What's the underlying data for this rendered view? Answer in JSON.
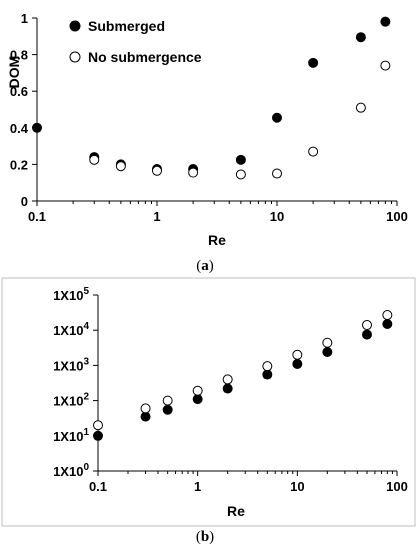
{
  "chart_data": [
    {
      "type": "scatter",
      "caption_letter": "a",
      "xlabel": "Re",
      "ylabel": "DOM",
      "xscale": "log",
      "xlim": [
        0.1,
        100
      ],
      "ylim": [
        0,
        1
      ],
      "x_ticks": [
        0.1,
        1,
        10,
        100
      ],
      "x_tick_labels": [
        "0.1",
        "1",
        "10",
        "100"
      ],
      "y_ticks": [
        0,
        0.2,
        0.4,
        0.6,
        0.8,
        1
      ],
      "y_tick_labels": [
        "0",
        "0.2",
        "0.4",
        "0.6",
        "0.8",
        "1"
      ],
      "grid": false,
      "legend_position": "top-left",
      "series": [
        {
          "name": "Submerged",
          "marker": "filled-circle",
          "x": [
            0.1,
            0.3,
            0.5,
            1,
            2,
            5,
            10,
            20,
            50,
            80
          ],
          "y": [
            0.4,
            0.24,
            0.2,
            0.175,
            0.175,
            0.225,
            0.455,
            0.755,
            0.895,
            0.98
          ]
        },
        {
          "name": "No submergence",
          "marker": "open-circle",
          "x": [
            0.3,
            0.5,
            1,
            2,
            5,
            10,
            20,
            50,
            80
          ],
          "y": [
            0.225,
            0.19,
            0.165,
            0.155,
            0.145,
            0.15,
            0.27,
            0.51,
            0.74
          ]
        }
      ]
    },
    {
      "type": "scatter",
      "caption_letter": "b",
      "xlabel": "Re",
      "ylabel": "",
      "xscale": "log",
      "yscale": "log",
      "xlim": [
        0.1,
        100
      ],
      "ylim": [
        1,
        100000
      ],
      "x_ticks": [
        0.1,
        1,
        10,
        100
      ],
      "x_tick_labels": [
        "0.1",
        "1",
        "10",
        "100"
      ],
      "y_ticks": [
        1,
        10,
        100,
        1000,
        10000,
        100000
      ],
      "y_tick_labels": [
        {
          "base": "1X10",
          "exp": "0"
        },
        {
          "base": "1X10",
          "exp": "1"
        },
        {
          "base": "1X10",
          "exp": "2"
        },
        {
          "base": "1X10",
          "exp": "3"
        },
        {
          "base": "1X10",
          "exp": "4"
        },
        {
          "base": "1X10",
          "exp": "5"
        }
      ],
      "grid": false,
      "series": [
        {
          "marker": "filled-circle",
          "x": [
            0.1,
            0.3,
            0.5,
            1,
            2,
            5,
            10,
            20,
            50,
            80
          ],
          "y": [
            10,
            35,
            55,
            110,
            220,
            550,
            1100,
            2400,
            7500,
            15000
          ]
        },
        {
          "marker": "open-circle",
          "x": [
            0.1,
            0.3,
            0.5,
            1,
            2,
            5,
            10,
            20,
            50,
            80
          ],
          "y": [
            20,
            60,
            100,
            190,
            400,
            950,
            2000,
            4400,
            14000,
            27000
          ]
        }
      ]
    }
  ]
}
